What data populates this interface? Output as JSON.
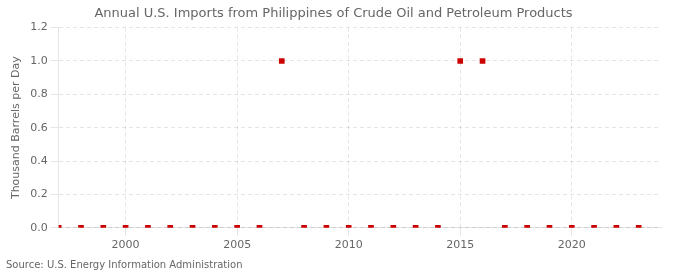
{
  "chart_data": {
    "type": "scatter",
    "title": "Annual U.S. Imports from Philippines of Crude Oil and Petroleum Products",
    "ylabel": "Thousand Barrels per Day",
    "source": "Source: U.S. Energy Information Administration",
    "x": [
      1997,
      1998,
      1999,
      2000,
      2001,
      2002,
      2003,
      2004,
      2005,
      2006,
      2007,
      2008,
      2009,
      2010,
      2011,
      2012,
      2013,
      2014,
      2015,
      2016,
      2017,
      2018,
      2019,
      2020,
      2021,
      2022,
      2023
    ],
    "values": [
      0,
      0,
      0,
      0,
      0,
      0,
      0,
      0,
      0,
      0,
      1.0,
      0,
      0,
      0,
      0,
      0,
      0,
      0,
      1.0,
      1.0,
      0,
      0,
      0,
      0,
      0,
      0.0,
      0.0
    ],
    "color": "#cc0000",
    "marker": "square",
    "xlim": [
      1997,
      2024
    ],
    "xticks": [
      2000,
      2005,
      2010,
      2015,
      2020
    ],
    "ylim": [
      0,
      1.2
    ],
    "yticks": [
      {
        "value": 0,
        "label": "0.0"
      },
      0.2,
      0.4,
      0.6,
      0.8,
      {
        "value": 1,
        "label": "1.0"
      },
      1.2
    ],
    "grid": true
  }
}
